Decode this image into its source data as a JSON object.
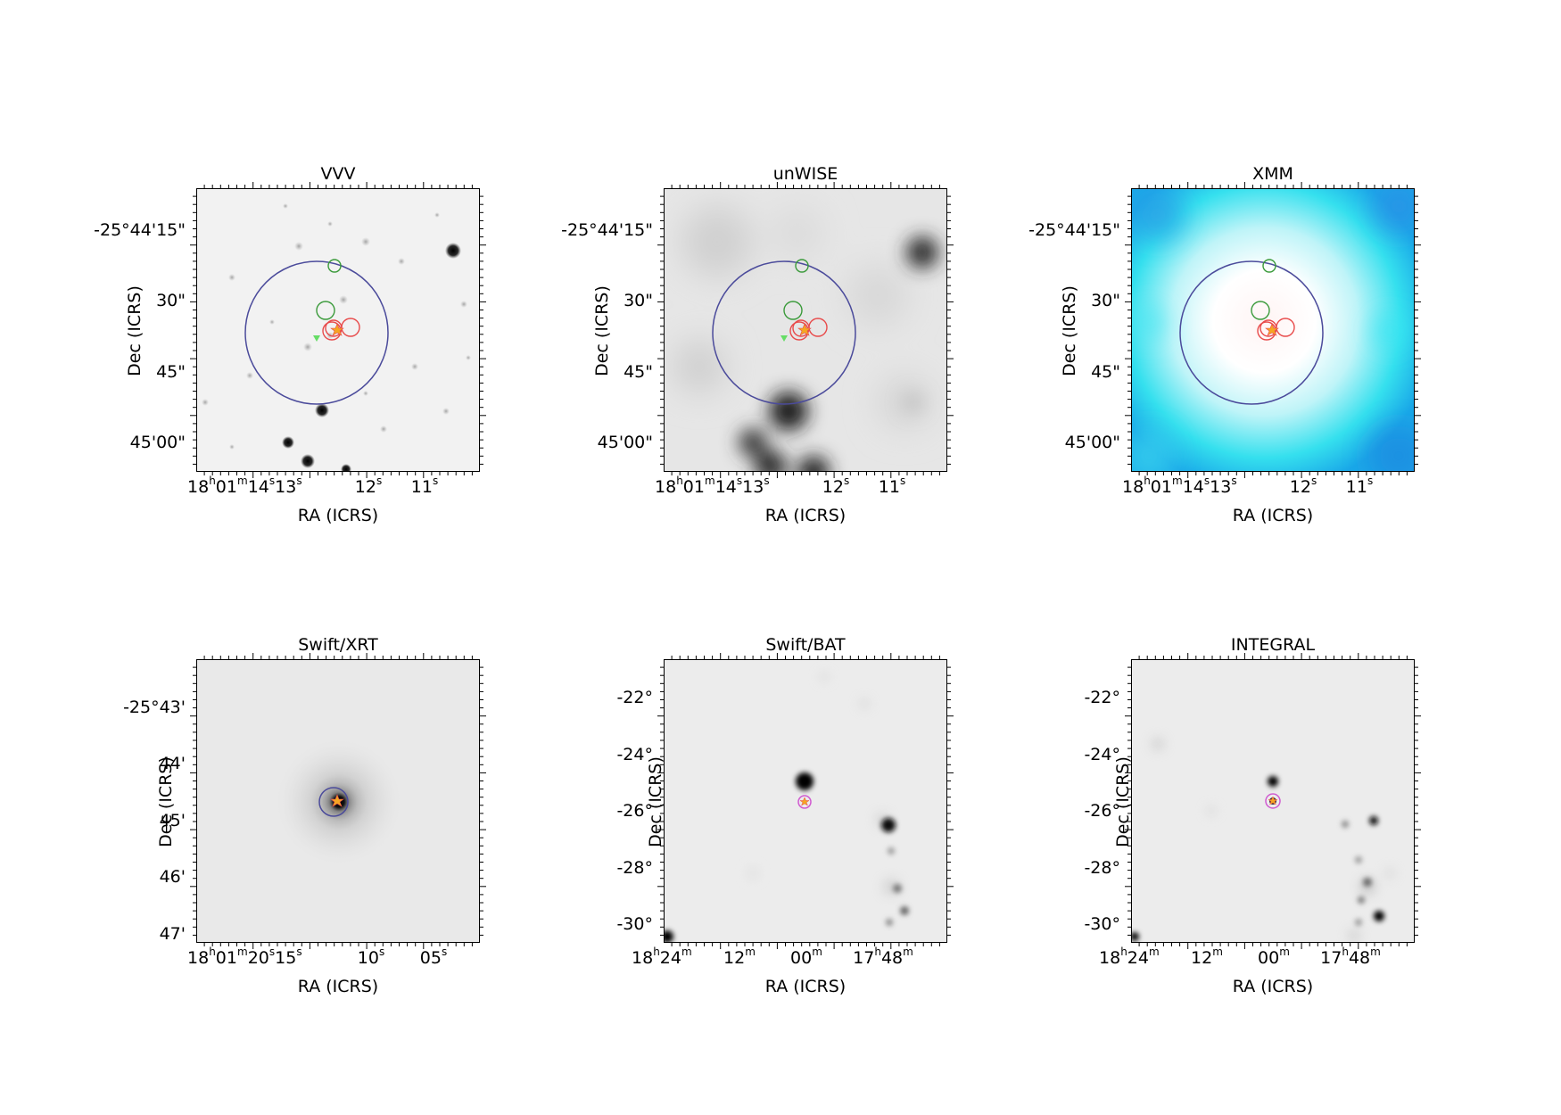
{
  "panels": [
    {
      "title": "VVV",
      "xlabel": "RA (ICRS)",
      "ylabel": "Dec (ICRS)",
      "yticks": [
        "-25°44'15\"",
        "30\"",
        "45\"",
        "45'00\""
      ],
      "xticks": [
        {
          "h": "18",
          "m": "01",
          "s1": "14",
          "s2": "13"
        },
        "12",
        "11"
      ],
      "background": "#f2f2f2"
    },
    {
      "title": "unWISE",
      "xlabel": "RA (ICRS)",
      "ylabel": "Dec (ICRS)",
      "yticks": [
        "-25°44'15\"",
        "30\"",
        "45\"",
        "45'00\""
      ],
      "xticks": [
        {
          "h": "18",
          "m": "01",
          "s1": "14",
          "s2": "13"
        },
        "12",
        "11"
      ],
      "background": "#e8e8e8"
    },
    {
      "title": "XMM",
      "xlabel": "RA (ICRS)",
      "ylabel": "Dec (ICRS)",
      "yticks": [
        "-25°44'15\"",
        "30\"",
        "45\"",
        "45'00\""
      ],
      "xticks": [
        {
          "h": "18",
          "m": "01",
          "s1": "14",
          "s2": "13"
        },
        "12",
        "11"
      ],
      "background": "#2fe0f0"
    },
    {
      "title": "Swift/XRT",
      "xlabel": "RA (ICRS)",
      "ylabel": "Dec (ICRS)",
      "yticks": [
        "-25°43'",
        "44'",
        "45'",
        "46'",
        "47'"
      ],
      "xticks": [
        {
          "h": "18",
          "m": "01",
          "s1": "20",
          "s2": "15"
        },
        "10",
        "05"
      ],
      "background": "#e9e9e9"
    },
    {
      "title": "Swift/BAT",
      "xlabel": "RA (ICRS)",
      "ylabel": "Dec (ICRS)",
      "yticks": [
        "-22°",
        "-24°",
        "-26°",
        "-28°",
        "-30°"
      ],
      "xticks": [
        {
          "h": "18",
          "m": "24"
        },
        "12",
        "00",
        {
          "h": "17",
          "m": "48"
        }
      ],
      "background": "#ececec"
    },
    {
      "title": "INTEGRAL",
      "xlabel": "RA (ICRS)",
      "ylabel": "Dec (ICRS)",
      "yticks": [
        "-22°",
        "-24°",
        "-26°",
        "-28°",
        "-30°"
      ],
      "xticks": [
        {
          "h": "18",
          "m": "24"
        },
        "12",
        "00",
        {
          "h": "17",
          "m": "48"
        }
      ],
      "background": "#ececec"
    }
  ],
  "colors": {
    "error_circle": "#4b4b9b",
    "green_circle": "#3a9a3a",
    "red_circle": "#e84a4a",
    "target_star": "#f5a623",
    "marker_green": "#66dd66",
    "xrt_fov": "#77e077",
    "magenta_circle": "#d05ad0"
  }
}
